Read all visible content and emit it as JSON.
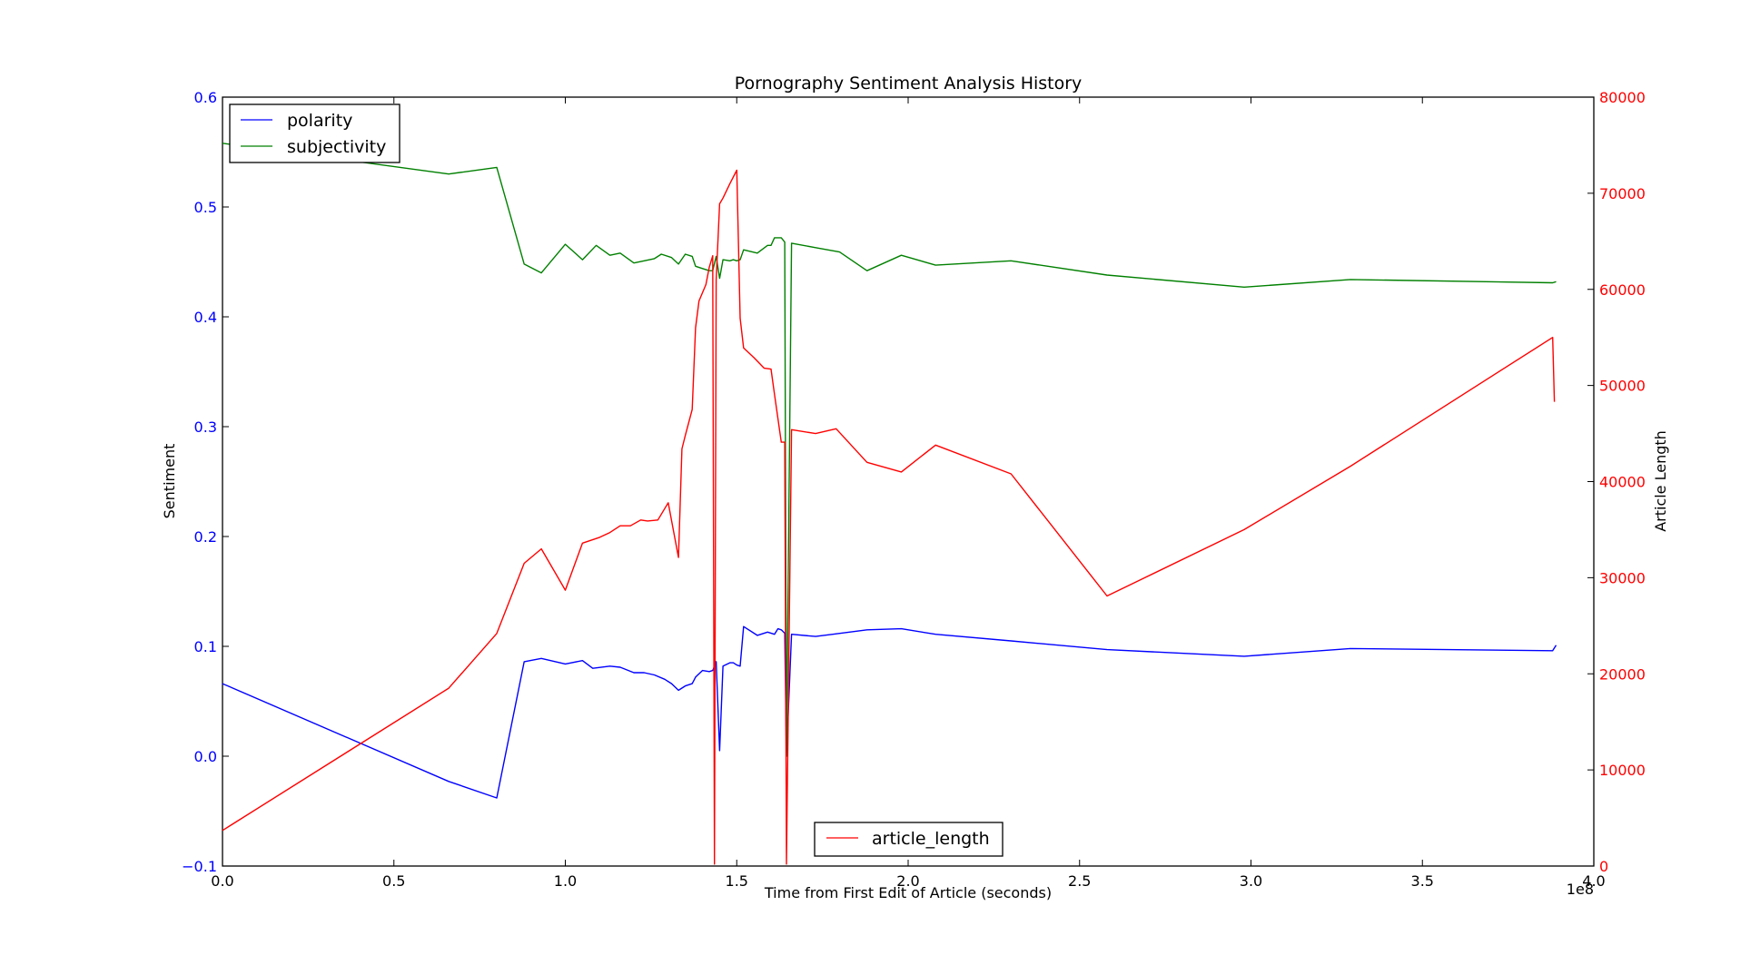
{
  "chart_data": {
    "type": "line",
    "title": "Pornography Sentiment Analysis History",
    "xlabel": "Time from First Edit of Article (seconds)",
    "x_scale_note": "1e8",
    "xlim": [
      0,
      4.0
    ],
    "x_ticks": [
      "0.0",
      "0.5",
      "1.0",
      "1.5",
      "2.0",
      "2.5",
      "3.0",
      "3.5",
      "4.0"
    ],
    "left_axis": {
      "label": "Sentiment",
      "ylim": [
        -0.1,
        0.6
      ],
      "ticks": [
        "−0.1",
        "0.0",
        "0.1",
        "0.2",
        "0.3",
        "0.4",
        "0.5",
        "0.6"
      ],
      "color": "#0000ff"
    },
    "right_axis": {
      "label": "Article Length",
      "ylim": [
        0,
        80000
      ],
      "ticks": [
        "0",
        "10000",
        "20000",
        "30000",
        "40000",
        "50000",
        "60000",
        "70000",
        "80000"
      ],
      "color": "#ff0000"
    },
    "series": [
      {
        "name": "polarity",
        "axis": "left",
        "color": "#0000ff",
        "x": [
          0.0,
          0.66,
          0.8,
          0.88,
          0.93,
          1.0,
          1.05,
          1.08,
          1.13,
          1.16,
          1.2,
          1.23,
          1.26,
          1.29,
          1.31,
          1.33,
          1.35,
          1.37,
          1.38,
          1.4,
          1.42,
          1.43,
          1.44,
          1.45,
          1.46,
          1.48,
          1.49,
          1.5,
          1.51,
          1.52,
          1.56,
          1.59,
          1.61,
          1.62,
          1.63,
          1.64,
          1.645,
          1.66,
          1.73,
          1.78,
          1.88,
          1.98,
          2.08,
          2.3,
          2.58,
          2.98,
          3.29,
          3.88,
          3.89
        ],
        "y": [
          0.066,
          -0.023,
          -0.038,
          0.086,
          0.089,
          0.084,
          0.087,
          0.08,
          0.082,
          0.081,
          0.076,
          0.076,
          0.074,
          0.07,
          0.066,
          0.06,
          0.064,
          0.066,
          0.072,
          0.078,
          0.077,
          0.078,
          0.086,
          0.005,
          0.082,
          0.085,
          0.085,
          0.083,
          0.082,
          0.118,
          0.11,
          0.113,
          0.111,
          0.116,
          0.115,
          0.112,
          0.0,
          0.111,
          0.109,
          0.111,
          0.115,
          0.116,
          0.111,
          0.105,
          0.097,
          0.091,
          0.098,
          0.096,
          0.101
        ]
      },
      {
        "name": "subjectivity",
        "axis": "left",
        "color": "#008000",
        "x": [
          0.0,
          0.66,
          0.8,
          0.88,
          0.93,
          1.0,
          1.05,
          1.09,
          1.13,
          1.16,
          1.2,
          1.23,
          1.26,
          1.28,
          1.31,
          1.33,
          1.35,
          1.37,
          1.38,
          1.4,
          1.42,
          1.43,
          1.44,
          1.45,
          1.46,
          1.48,
          1.49,
          1.5,
          1.51,
          1.52,
          1.56,
          1.59,
          1.6,
          1.61,
          1.63,
          1.64,
          1.645,
          1.66,
          1.73,
          1.8,
          1.88,
          1.98,
          2.08,
          2.3,
          2.58,
          2.98,
          3.29,
          3.88,
          3.89
        ],
        "y": [
          0.558,
          0.53,
          0.536,
          0.448,
          0.44,
          0.466,
          0.452,
          0.465,
          0.456,
          0.458,
          0.449,
          0.451,
          0.453,
          0.457,
          0.454,
          0.448,
          0.457,
          0.455,
          0.446,
          0.444,
          0.442,
          0.442,
          0.455,
          0.435,
          0.452,
          0.451,
          0.452,
          0.451,
          0.452,
          0.461,
          0.458,
          0.465,
          0.465,
          0.472,
          0.472,
          0.468,
          0.0,
          0.467,
          0.463,
          0.459,
          0.442,
          0.456,
          0.447,
          0.451,
          0.438,
          0.427,
          0.434,
          0.431,
          0.432
        ]
      },
      {
        "name": "article_length",
        "axis": "right",
        "color": "#ff0000",
        "x": [
          0.0,
          0.66,
          0.8,
          0.88,
          0.93,
          1.0,
          1.05,
          1.1,
          1.13,
          1.16,
          1.19,
          1.22,
          1.24,
          1.27,
          1.3,
          1.33,
          1.34,
          1.35,
          1.37,
          1.38,
          1.39,
          1.41,
          1.42,
          1.43,
          1.435,
          1.44,
          1.45,
          1.46,
          1.48,
          1.5,
          1.51,
          1.52,
          1.55,
          1.58,
          1.6,
          1.61,
          1.63,
          1.64,
          1.645,
          1.66,
          1.73,
          1.79,
          1.88,
          1.98,
          2.08,
          2.3,
          2.58,
          2.98,
          3.29,
          3.88,
          3.885
        ],
        "y": [
          3700,
          18500,
          24200,
          31500,
          33000,
          28700,
          33600,
          34200,
          34700,
          35400,
          35400,
          36000,
          35900,
          36000,
          37800,
          32100,
          43400,
          44800,
          47500,
          56000,
          58800,
          60500,
          62300,
          63500,
          200,
          61000,
          68900,
          69500,
          71000,
          72400,
          57000,
          53900,
          52900,
          51800,
          51700,
          49100,
          44100,
          44100,
          200,
          45400,
          45000,
          45500,
          42000,
          41000,
          43800,
          40800,
          28100,
          35000,
          41600,
          55000,
          48300
        ]
      }
    ],
    "legends": [
      {
        "position": "upper-left",
        "entries": [
          "polarity",
          "subjectivity"
        ]
      },
      {
        "position": "lower-center",
        "entries": [
          "article_length"
        ]
      }
    ]
  }
}
